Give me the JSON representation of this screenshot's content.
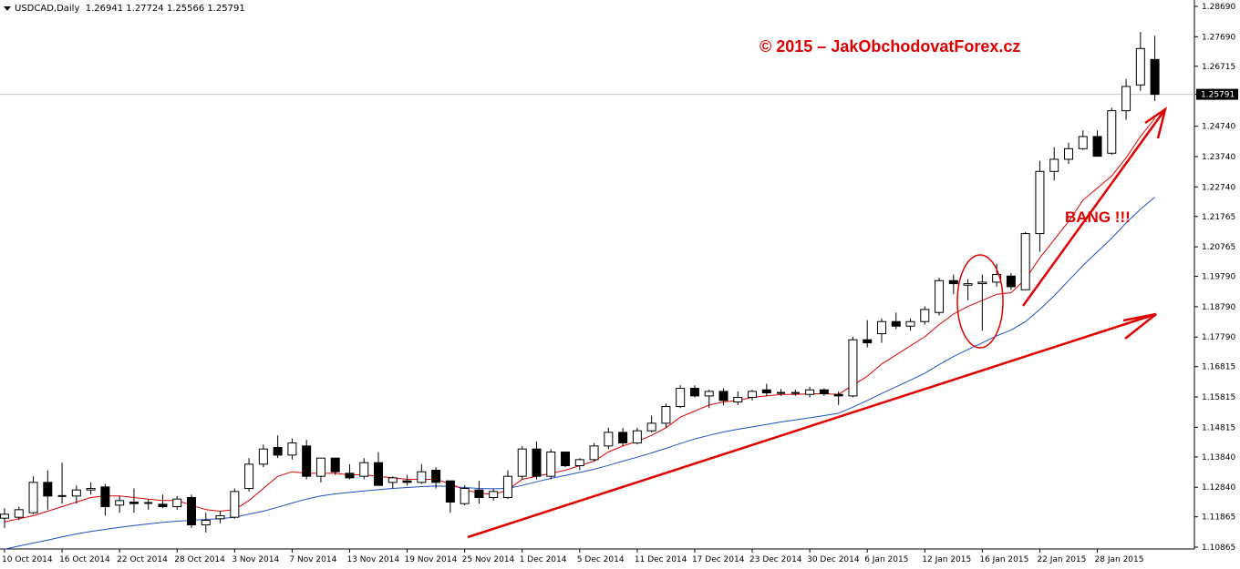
{
  "header": {
    "symbol": "USDCAD,Daily",
    "open": "1.26941",
    "high": "1.27724",
    "low": "1.25566",
    "close": "1.25791"
  },
  "watermark": "© 2015 – JakObchodovatForex.cz",
  "annotation": "BANG !!!",
  "current_price_label": "1.25791",
  "colors": {
    "bull_fill": "#ffffff",
    "bear_fill": "#000000",
    "ma_fast": "#e00000",
    "ma_slow": "#2050c8",
    "annotation": "#e00000",
    "price_line": "#c8c8c8"
  },
  "chart_data": {
    "type": "candlestick",
    "title": "USDCAD,Daily",
    "ylim": [
      1.10865,
      1.2869
    ],
    "y_ticks": [
      "1.28690",
      "1.27690",
      "1.26715",
      "1.25791",
      "1.24740",
      "1.23740",
      "1.22740",
      "1.21765",
      "1.20765",
      "1.19790",
      "1.18790",
      "1.17790",
      "1.16815",
      "1.15815",
      "1.14815",
      "1.13840",
      "1.12840",
      "1.11865",
      "1.10865"
    ],
    "x_tick_labels": [
      "10 Oct 2014",
      "16 Oct 2014",
      "22 Oct 2014",
      "28 Oct 2014",
      "3 Nov 2014",
      "7 Nov 2014",
      "13 Nov 2014",
      "19 Nov 2014",
      "25 Nov 2014",
      "1 Dec 2014",
      "5 Dec 2014",
      "11 Dec 2014",
      "17 Dec 2014",
      "23 Dec 2014",
      "30 Dec 2014",
      "6 Jan 2015",
      "12 Jan 2015",
      "16 Jan 2015",
      "22 Jan 2015",
      "28 Jan 2015"
    ],
    "candles": [
      [
        1.1182,
        1.1215,
        1.115,
        1.1195
      ],
      [
        1.1185,
        1.122,
        1.1175,
        1.121
      ],
      [
        1.12,
        1.132,
        1.1195,
        1.13
      ],
      [
        1.13,
        1.134,
        1.121,
        1.1255
      ],
      [
        1.1255,
        1.1365,
        1.123,
        1.1255
      ],
      [
        1.1255,
        1.129,
        1.123,
        1.1275
      ],
      [
        1.1275,
        1.13,
        1.126,
        1.128
      ],
      [
        1.1285,
        1.1295,
        1.119,
        1.122
      ],
      [
        1.1225,
        1.1255,
        1.12,
        1.124
      ],
      [
        1.1235,
        1.128,
        1.12,
        1.123
      ],
      [
        1.1232,
        1.1245,
        1.121,
        1.1228
      ],
      [
        1.1228,
        1.126,
        1.1215,
        1.122
      ],
      [
        1.122,
        1.1255,
        1.121,
        1.1245
      ],
      [
        1.125,
        1.126,
        1.115,
        1.116
      ],
      [
        1.116,
        1.12,
        1.1135,
        1.1175
      ],
      [
        1.118,
        1.1205,
        1.1165,
        1.119
      ],
      [
        1.1185,
        1.128,
        1.118,
        1.127
      ],
      [
        1.128,
        1.138,
        1.127,
        1.136
      ],
      [
        1.136,
        1.1425,
        1.135,
        1.141
      ],
      [
        1.1415,
        1.1455,
        1.138,
        1.139
      ],
      [
        1.139,
        1.1445,
        1.1375,
        1.143
      ],
      [
        1.142,
        1.144,
        1.131,
        1.132
      ],
      [
        1.132,
        1.138,
        1.13,
        1.138
      ],
      [
        1.138,
        1.138,
        1.1325,
        1.1335
      ],
      [
        1.133,
        1.136,
        1.131,
        1.1315
      ],
      [
        1.132,
        1.138,
        1.131,
        1.1365
      ],
      [
        1.1365,
        1.14,
        1.129,
        1.129
      ],
      [
        1.13,
        1.132,
        1.128,
        1.1315
      ],
      [
        1.1305,
        1.1325,
        1.129,
        1.13
      ],
      [
        1.13,
        1.136,
        1.1295,
        1.1335
      ],
      [
        1.134,
        1.135,
        1.128,
        1.13
      ],
      [
        1.1305,
        1.1305,
        1.12,
        1.1235
      ],
      [
        1.123,
        1.129,
        1.1225,
        1.128
      ],
      [
        1.1275,
        1.1305,
        1.123,
        1.125
      ],
      [
        1.125,
        1.128,
        1.124,
        1.127
      ],
      [
        1.125,
        1.134,
        1.1245,
        1.132
      ],
      [
        1.132,
        1.142,
        1.131,
        1.141
      ],
      [
        1.141,
        1.1435,
        1.131,
        1.132
      ],
      [
        1.132,
        1.141,
        1.131,
        1.14
      ],
      [
        1.14,
        1.14,
        1.135,
        1.1355
      ],
      [
        1.1355,
        1.138,
        1.134,
        1.1375
      ],
      [
        1.1375,
        1.143,
        1.137,
        1.142
      ],
      [
        1.142,
        1.148,
        1.141,
        1.1465
      ],
      [
        1.1465,
        1.148,
        1.142,
        1.143
      ],
      [
        1.143,
        1.148,
        1.1425,
        1.147
      ],
      [
        1.147,
        1.152,
        1.1465,
        1.1495
      ],
      [
        1.1495,
        1.156,
        1.148,
        1.155
      ],
      [
        1.155,
        1.162,
        1.1545,
        1.161
      ],
      [
        1.161,
        1.162,
        1.158,
        1.1585
      ],
      [
        1.1585,
        1.1605,
        1.1545,
        1.16
      ],
      [
        1.16,
        1.161,
        1.1555,
        1.157
      ],
      [
        1.1565,
        1.16,
        1.1555,
        1.158
      ],
      [
        1.158,
        1.1605,
        1.157,
        1.16
      ],
      [
        1.1605,
        1.1625,
        1.1585,
        1.1595
      ],
      [
        1.1592,
        1.1608,
        1.1585,
        1.1595
      ],
      [
        1.1595,
        1.1605,
        1.1585,
        1.1592
      ],
      [
        1.159,
        1.1615,
        1.158,
        1.1605
      ],
      [
        1.1605,
        1.161,
        1.1585,
        1.1592
      ],
      [
        1.159,
        1.16,
        1.1555,
        1.1585
      ],
      [
        1.1585,
        1.178,
        1.158,
        1.177
      ],
      [
        1.177,
        1.1835,
        1.1745,
        1.176
      ],
      [
        1.179,
        1.184,
        1.176,
        1.183
      ],
      [
        1.183,
        1.186,
        1.1805,
        1.1815
      ],
      [
        1.1815,
        1.184,
        1.18,
        1.183
      ],
      [
        1.183,
        1.188,
        1.182,
        1.187
      ],
      [
        1.186,
        1.1975,
        1.185,
        1.1965
      ],
      [
        1.1965,
        1.1985,
        1.192,
        1.1955
      ],
      [
        1.195,
        1.197,
        1.19,
        1.1955
      ],
      [
        1.1955,
        1.1985,
        1.18,
        1.196
      ],
      [
        1.196,
        1.202,
        1.1945,
        1.1985
      ],
      [
        1.198,
        1.199,
        1.1935,
        1.1945
      ],
      [
        1.1935,
        1.2125,
        1.1935,
        1.212
      ],
      [
        1.212,
        1.236,
        1.206,
        1.2325
      ],
      [
        1.2325,
        1.2405,
        1.2295,
        1.2365
      ],
      [
        1.2365,
        1.242,
        1.235,
        1.24
      ],
      [
        1.24,
        1.246,
        1.2395,
        1.244
      ],
      [
        1.244,
        1.246,
        1.2375,
        1.2375
      ],
      [
        1.2385,
        1.2535,
        1.238,
        1.2525
      ],
      [
        1.2525,
        1.263,
        1.2495,
        1.2605
      ],
      [
        1.261,
        1.2785,
        1.259,
        1.273
      ],
      [
        1.2694,
        1.2772,
        1.2557,
        1.2579
      ]
    ],
    "ma_fast": {
      "name": "",
      "values": [
        1.117,
        1.118,
        1.119,
        1.1205,
        1.122,
        1.1235,
        1.125,
        1.1255,
        1.1255,
        1.125,
        1.1245,
        1.124,
        1.124,
        1.1225,
        1.121,
        1.1205,
        1.121,
        1.124,
        1.128,
        1.132,
        1.1335,
        1.133,
        1.133,
        1.133,
        1.1325,
        1.1325,
        1.132,
        1.1315,
        1.131,
        1.131,
        1.131,
        1.1295,
        1.1275,
        1.1265,
        1.126,
        1.1275,
        1.131,
        1.132,
        1.133,
        1.134,
        1.1355,
        1.137,
        1.14,
        1.142,
        1.1435,
        1.1455,
        1.148,
        1.1515,
        1.1535,
        1.1555,
        1.1565,
        1.157,
        1.158,
        1.1585,
        1.159,
        1.159,
        1.1592,
        1.1592,
        1.159,
        1.162,
        1.165,
        1.169,
        1.172,
        1.175,
        1.178,
        1.182,
        1.1855,
        1.188,
        1.19,
        1.192,
        1.1925,
        1.197,
        1.204,
        1.21,
        1.216,
        1.223,
        1.227,
        1.231,
        1.237,
        1.244,
        1.25
      ]
    },
    "ma_slow": {
      "name": "",
      "values": [
        1.108,
        1.109,
        1.11,
        1.111,
        1.112,
        1.113,
        1.1138,
        1.1145,
        1.1152,
        1.1158,
        1.1163,
        1.1168,
        1.1172,
        1.1175,
        1.1178,
        1.118,
        1.1185,
        1.1195,
        1.1205,
        1.1218,
        1.1232,
        1.1245,
        1.1255,
        1.1262,
        1.1267,
        1.1272,
        1.1276,
        1.128,
        1.1283,
        1.1286,
        1.1288,
        1.1287,
        1.1283,
        1.128,
        1.1279,
        1.128,
        1.129,
        1.1302,
        1.1313,
        1.1323,
        1.1333,
        1.1343,
        1.1356,
        1.137,
        1.1383,
        1.1397,
        1.1412,
        1.1428,
        1.1443,
        1.1455,
        1.1466,
        1.1475,
        1.1483,
        1.1491,
        1.1499,
        1.1506,
        1.1513,
        1.152,
        1.1528,
        1.1548,
        1.157,
        1.1593,
        1.1615,
        1.1637,
        1.166,
        1.1688,
        1.1715,
        1.1738,
        1.176,
        1.1783,
        1.1802,
        1.183,
        1.187,
        1.1915,
        1.1965,
        1.2015,
        1.206,
        1.2105,
        1.2155,
        1.22,
        1.224
      ]
    },
    "grid": false,
    "legend": "none"
  }
}
